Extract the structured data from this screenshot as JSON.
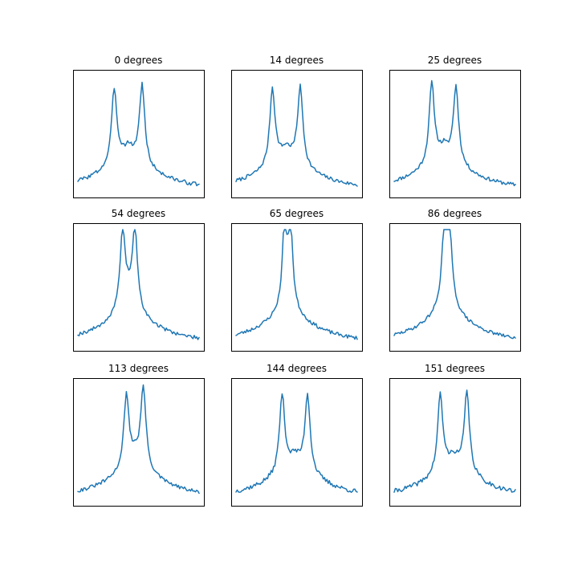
{
  "chart_data": [
    {
      "type": "line",
      "title": "0 degrees",
      "xlim": [
        0,
        100
      ],
      "ylim": [
        0,
        1
      ],
      "peaks": [
        {
          "x": 30,
          "height": 0.92,
          "width": 2.6
        },
        {
          "x": 53,
          "height": 0.95,
          "width": 2.6
        }
      ],
      "base": 0.35,
      "decay": 0.04,
      "noise": 0.018,
      "seed": 3
    },
    {
      "type": "line",
      "title": "14 degrees",
      "xlim": [
        0,
        100
      ],
      "ylim": [
        0,
        1
      ],
      "peaks": [
        {
          "x": 30,
          "height": 0.92,
          "width": 2.6
        },
        {
          "x": 53,
          "height": 0.93,
          "width": 2.6
        }
      ],
      "base": 0.34,
      "decay": 0.04,
      "noise": 0.016,
      "seed": 7
    },
    {
      "type": "line",
      "title": "25 degrees",
      "xlim": [
        0,
        100
      ],
      "ylim": [
        0,
        1
      ],
      "peaks": [
        {
          "x": 31,
          "height": 0.95,
          "width": 2.6
        },
        {
          "x": 51,
          "height": 0.92,
          "width": 2.6
        }
      ],
      "base": 0.34,
      "decay": 0.04,
      "noise": 0.016,
      "seed": 11
    },
    {
      "type": "line",
      "title": "54 degrees",
      "xlim": [
        0,
        100
      ],
      "ylim": [
        0,
        1
      ],
      "peaks": [
        {
          "x": 37,
          "height": 0.95,
          "width": 2.6
        },
        {
          "x": 47,
          "height": 0.95,
          "width": 2.6
        }
      ],
      "base": 0.34,
      "decay": 0.04,
      "noise": 0.016,
      "seed": 19
    },
    {
      "type": "line",
      "title": "65 degrees",
      "xlim": [
        0,
        100
      ],
      "ylim": [
        0,
        1
      ],
      "peaks": [
        {
          "x": 40,
          "height": 0.93,
          "width": 2.2
        },
        {
          "x": 45,
          "height": 0.93,
          "width": 2.2
        }
      ],
      "base": 0.34,
      "decay": 0.04,
      "noise": 0.016,
      "seed": 23
    },
    {
      "type": "line",
      "title": "86 degrees",
      "xlim": [
        0,
        100
      ],
      "ylim": [
        0,
        1
      ],
      "peaks": [
        {
          "x": 42,
          "height": 0.95,
          "width": 2.6
        },
        {
          "x": 45,
          "height": 0.93,
          "width": 2.6
        }
      ],
      "base": 0.34,
      "decay": 0.04,
      "noise": 0.014,
      "seed": 29
    },
    {
      "type": "line",
      "title": "113 degrees",
      "xlim": [
        0,
        100
      ],
      "ylim": [
        0,
        1
      ],
      "peaks": [
        {
          "x": 40,
          "height": 0.88,
          "width": 2.6
        },
        {
          "x": 54,
          "height": 0.95,
          "width": 2.6
        }
      ],
      "base": 0.34,
      "decay": 0.04,
      "noise": 0.016,
      "seed": 31
    },
    {
      "type": "line",
      "title": "144 degrees",
      "xlim": [
        0,
        100
      ],
      "ylim": [
        0,
        1
      ],
      "peaks": [
        {
          "x": 38,
          "height": 0.93,
          "width": 2.6
        },
        {
          "x": 59,
          "height": 0.93,
          "width": 2.6
        }
      ],
      "base": 0.34,
      "decay": 0.04,
      "noise": 0.02,
      "seed": 37
    },
    {
      "type": "line",
      "title": "151 degrees",
      "xlim": [
        0,
        100
      ],
      "ylim": [
        0,
        1
      ],
      "peaks": [
        {
          "x": 38,
          "height": 0.93,
          "width": 2.6
        },
        {
          "x": 60,
          "height": 0.95,
          "width": 2.6
        }
      ],
      "base": 0.34,
      "decay": 0.04,
      "noise": 0.02,
      "seed": 41
    }
  ],
  "style": {
    "line_color": "#1f77b4",
    "frame_color": "#000000",
    "background": "#ffffff",
    "grid": false,
    "axes_ticks": false
  }
}
